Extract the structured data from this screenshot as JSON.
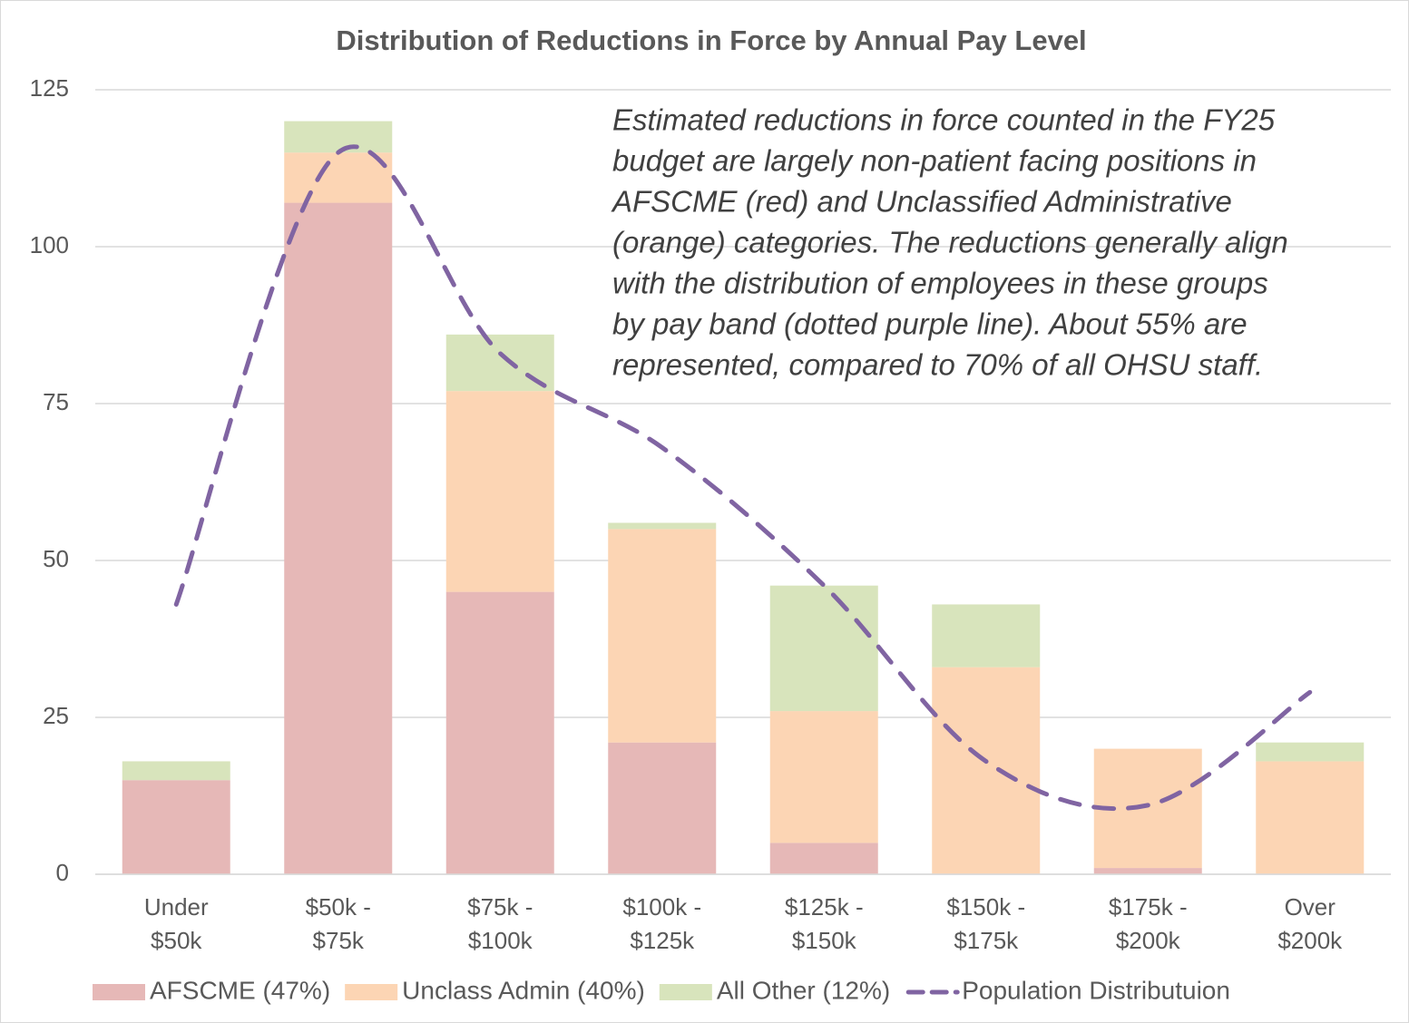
{
  "chart_data": {
    "type": "bar",
    "stacked": true,
    "title": "Distribution of Reductions in Force by Annual Pay Level",
    "annotation": [
      "Estimated reductions in force counted in the FY25",
      "budget are largely non-patient facing positions in",
      "AFSCME (red) and Unclassified Administrative",
      "(orange) categories.  The reductions generally align",
      "with the distribution of employees in these groups",
      "by pay band (dotted purple line).  About 55% are",
      "represented, compared to 70% of all OHSU staff."
    ],
    "categories": [
      [
        "Under",
        "$50k"
      ],
      [
        "$50k -",
        "$75k"
      ],
      [
        "$75k -",
        "$100k"
      ],
      [
        "$100k -",
        "$125k"
      ],
      [
        "$125k -",
        "$150k"
      ],
      [
        "$150k -",
        "$175k"
      ],
      [
        "$175k -",
        "$200k"
      ],
      [
        "Over",
        "$200k"
      ]
    ],
    "series": [
      {
        "name": "AFSCME (47%)",
        "color": "#e6b8b7",
        "values": [
          15,
          107,
          45,
          21,
          5,
          0,
          1,
          0
        ]
      },
      {
        "name": "Unclass Admin (40%)",
        "color": "#fcd5b4",
        "values": [
          0,
          8,
          32,
          34,
          21,
          33,
          19,
          18
        ]
      },
      {
        "name": "All Other (12%)",
        "color": "#d8e4bc",
        "values": [
          3,
          5,
          9,
          1,
          20,
          10,
          0,
          3
        ]
      },
      {
        "name": "Population Distributuion",
        "type": "line",
        "color": "#8064a2",
        "dashed": true,
        "values": [
          43,
          115,
          83,
          68,
          46,
          18,
          11,
          29
        ]
      }
    ],
    "ylim": [
      0,
      125
    ],
    "yticks": [
      0,
      25,
      50,
      75,
      100,
      125
    ],
    "grid": true,
    "legend": "bottom"
  }
}
